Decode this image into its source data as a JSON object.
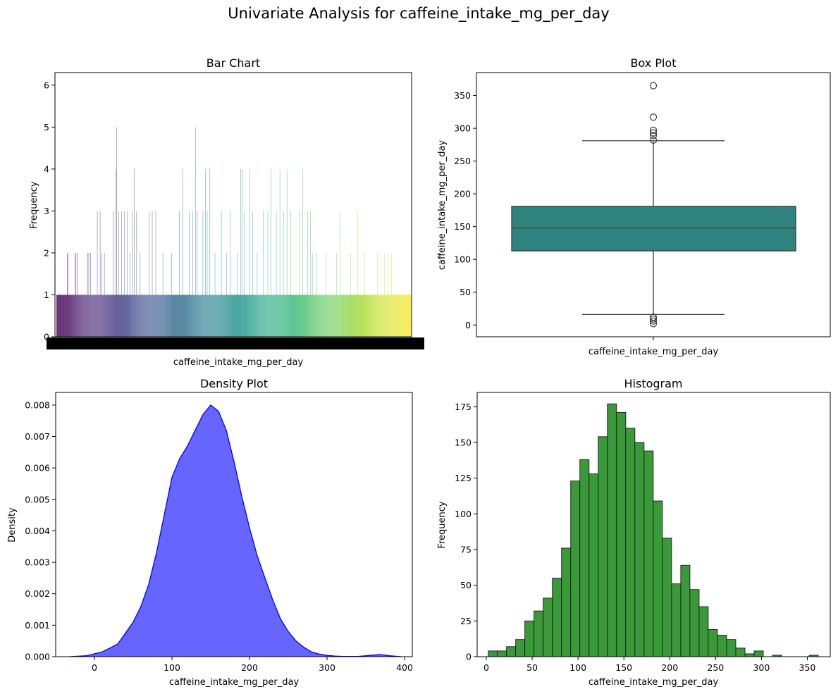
{
  "figure": {
    "suptitle": "Univariate Analysis for caffeine_intake_mg_per_day"
  },
  "chart_data": [
    {
      "panel": "bar",
      "type": "bar",
      "title": "Bar Chart",
      "xlabel": "caffeine_intake_mg_per_day",
      "ylabel": "Frequency",
      "ylim": [
        0,
        6.3
      ],
      "yticks": [
        0,
        1,
        2,
        3,
        4,
        5,
        6
      ],
      "n_categories": 1000,
      "colormap": "viridis",
      "tall_bars": [
        {
          "index": 30,
          "value": 2
        },
        {
          "index": 33,
          "value": 2
        },
        {
          "index": 52,
          "value": 2
        },
        {
          "index": 55,
          "value": 2
        },
        {
          "index": 58,
          "value": 2
        },
        {
          "index": 88,
          "value": 2
        },
        {
          "index": 91,
          "value": 2
        },
        {
          "index": 96,
          "value": 2
        },
        {
          "index": 115,
          "value": 3
        },
        {
          "index": 123,
          "value": 3
        },
        {
          "index": 128,
          "value": 2
        },
        {
          "index": 135,
          "value": 2
        },
        {
          "index": 160,
          "value": 3
        },
        {
          "index": 168,
          "value": 4
        },
        {
          "index": 170,
          "value": 5
        },
        {
          "index": 176,
          "value": 3
        },
        {
          "index": 184,
          "value": 3
        },
        {
          "index": 191,
          "value": 3
        },
        {
          "index": 200,
          "value": 3
        },
        {
          "index": 208,
          "value": 2
        },
        {
          "index": 214,
          "value": 3
        },
        {
          "index": 219,
          "value": 4
        },
        {
          "index": 226,
          "value": 3
        },
        {
          "index": 236,
          "value": 2
        },
        {
          "index": 262,
          "value": 3
        },
        {
          "index": 270,
          "value": 3
        },
        {
          "index": 280,
          "value": 3
        },
        {
          "index": 300,
          "value": 2
        },
        {
          "index": 325,
          "value": 2
        },
        {
          "index": 346,
          "value": 3
        },
        {
          "index": 356,
          "value": 4
        },
        {
          "index": 374,
          "value": 3
        },
        {
          "index": 384,
          "value": 3
        },
        {
          "index": 392,
          "value": 5
        },
        {
          "index": 397,
          "value": 3
        },
        {
          "index": 413,
          "value": 3
        },
        {
          "index": 420,
          "value": 4
        },
        {
          "index": 425,
          "value": 3
        },
        {
          "index": 432,
          "value": 4
        },
        {
          "index": 447,
          "value": 2
        },
        {
          "index": 465,
          "value": 3
        },
        {
          "index": 480,
          "value": 2
        },
        {
          "index": 490,
          "value": 3
        },
        {
          "index": 510,
          "value": 2
        },
        {
          "index": 520,
          "value": 4
        },
        {
          "index": 524,
          "value": 4
        },
        {
          "index": 530,
          "value": 3
        },
        {
          "index": 545,
          "value": 4
        },
        {
          "index": 553,
          "value": 3
        },
        {
          "index": 566,
          "value": 2
        },
        {
          "index": 583,
          "value": 3
        },
        {
          "index": 596,
          "value": 3
        },
        {
          "index": 605,
          "value": 4
        },
        {
          "index": 620,
          "value": 3
        },
        {
          "index": 630,
          "value": 4
        },
        {
          "index": 640,
          "value": 3
        },
        {
          "index": 650,
          "value": 4
        },
        {
          "index": 660,
          "value": 3
        },
        {
          "index": 685,
          "value": 3
        },
        {
          "index": 694,
          "value": 4
        },
        {
          "index": 708,
          "value": 3
        },
        {
          "index": 716,
          "value": 3
        },
        {
          "index": 722,
          "value": 2
        },
        {
          "index": 735,
          "value": 2
        },
        {
          "index": 760,
          "value": 2
        },
        {
          "index": 790,
          "value": 2
        },
        {
          "index": 800,
          "value": 3
        },
        {
          "index": 830,
          "value": 2
        },
        {
          "index": 850,
          "value": 3
        },
        {
          "index": 870,
          "value": 2
        },
        {
          "index": 905,
          "value": 2
        },
        {
          "index": 925,
          "value": 2
        },
        {
          "index": 935,
          "value": 2
        },
        {
          "index": 945,
          "value": 2
        }
      ]
    },
    {
      "panel": "box",
      "type": "box",
      "title": "Box Plot",
      "xlabel": "caffeine_intake_mg_per_day",
      "ylabel": "caffeine_intake_mg_per_day",
      "ylim": [
        -18,
        385
      ],
      "yticks": [
        0,
        50,
        100,
        150,
        200,
        250,
        300,
        350
      ],
      "box_color": "#2e837e",
      "whisker_low": 16,
      "q1": 113,
      "median": 148,
      "q3": 181,
      "whisker_high": 281,
      "outliers": [
        365,
        317,
        297,
        293,
        289,
        282,
        12,
        9,
        6,
        2
      ]
    },
    {
      "panel": "density",
      "type": "area",
      "title": "Density Plot",
      "xlabel": "caffeine_intake_mg_per_day",
      "ylabel": "Density",
      "xlim": [
        -50,
        410
      ],
      "ylim": [
        0,
        0.0084
      ],
      "xticks": [
        0,
        100,
        200,
        300,
        400
      ],
      "yticks": [
        0.0,
        0.001,
        0.002,
        0.003,
        0.004,
        0.005,
        0.006,
        0.007,
        0.008
      ],
      "ytick_labels": [
        "0.000",
        "0.001",
        "0.002",
        "0.003",
        "0.004",
        "0.005",
        "0.006",
        "0.007",
        "0.008"
      ],
      "fill_color": "#6666ff",
      "line_color": "#0000ff",
      "x": [
        -32,
        -10,
        10,
        30,
        50,
        60,
        70,
        80,
        90,
        100,
        110,
        120,
        130,
        140,
        150,
        160,
        170,
        180,
        190,
        200,
        210,
        220,
        230,
        240,
        250,
        260,
        270,
        280,
        290,
        300,
        310,
        320,
        340,
        360,
        368,
        380,
        396
      ],
      "y": [
        0.0,
        3e-05,
        0.00015,
        0.0004,
        0.0011,
        0.0016,
        0.0023,
        0.0033,
        0.0045,
        0.0057,
        0.0063,
        0.0067,
        0.0072,
        0.0077,
        0.008,
        0.0078,
        0.0072,
        0.0062,
        0.0051,
        0.0041,
        0.0032,
        0.0025,
        0.0018,
        0.0012,
        0.0008,
        0.0005,
        0.0003,
        0.00015,
        8e-05,
        4e-05,
        2e-05,
        1e-05,
        1e-05,
        5e-05,
        7e-05,
        3e-05,
        0.0
      ]
    },
    {
      "panel": "hist",
      "type": "bar",
      "title": "Histogram",
      "xlabel": "caffeine_intake_mg_per_day",
      "ylabel": "Frequency",
      "xlim": [
        -10,
        375
      ],
      "ylim": [
        0,
        185
      ],
      "xticks": [
        0,
        50,
        100,
        150,
        200,
        250,
        300,
        350
      ],
      "yticks": [
        0,
        25,
        50,
        75,
        100,
        125,
        150,
        175
      ],
      "bar_color": "#3a9a3a",
      "bin_start": 2,
      "bin_width": 10,
      "counts": [
        4,
        4,
        7,
        12,
        25,
        32,
        41,
        55,
        76,
        123,
        138,
        128,
        154,
        177,
        171,
        160,
        150,
        144,
        109,
        83,
        51,
        64,
        47,
        35,
        19,
        15,
        12,
        6,
        2,
        4,
        0,
        1,
        0,
        0,
        0,
        1
      ]
    }
  ]
}
